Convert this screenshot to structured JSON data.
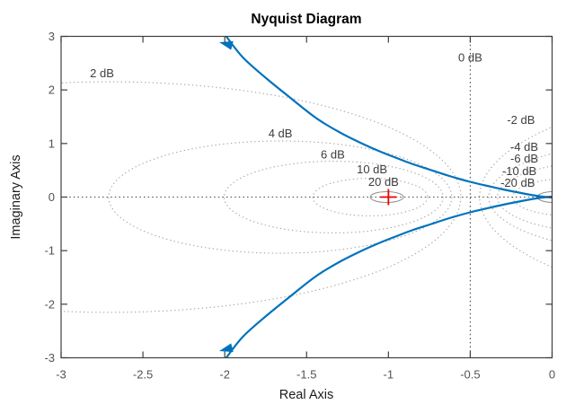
{
  "window": {
    "title": "Nyquist Diagram"
  },
  "chart_data": {
    "type": "line",
    "title": "Nyquist Diagram",
    "xlabel": "Real Axis",
    "ylabel": "Imaginary Axis",
    "xlim": [
      -3,
      0
    ],
    "ylim": [
      -3,
      3
    ],
    "xticks": [
      -3,
      -2.5,
      -2,
      -1.5,
      -1,
      -0.5,
      0
    ],
    "xtick_labels": [
      "-3",
      "-2.5",
      "-2",
      "-1.5",
      "-1",
      "-0.5",
      "0"
    ],
    "yticks": [
      -3,
      -2,
      -1,
      0,
      1,
      2,
      3
    ],
    "ytick_labels": [
      "-3",
      "-2",
      "-1",
      "0",
      "1",
      "2",
      "3"
    ],
    "grid": "nyquist dB grid (dotted M-circles)",
    "legend": "none",
    "zero_lines": {
      "horizontal_y": 0,
      "vertical_x": -0.5
    },
    "critical_point": {
      "x": -1,
      "y": 0,
      "marker": "+",
      "color": "#f00000"
    },
    "series": [
      {
        "name": "nyquist-positive-frequency-branch",
        "color": "#0072bd",
        "points": [
          [
            -1.993,
            3.008
          ],
          [
            -1.889,
            2.606
          ],
          [
            -1.741,
            2.204
          ],
          [
            -1.599,
            1.852
          ],
          [
            -1.468,
            1.533
          ],
          [
            -1.396,
            1.383
          ],
          [
            -1.287,
            1.19
          ],
          [
            -1.177,
            1.022
          ],
          [
            -1.067,
            0.871
          ],
          [
            -0.957,
            0.737
          ],
          [
            -0.848,
            0.612
          ],
          [
            -0.738,
            0.503
          ],
          [
            -0.628,
            0.394
          ],
          [
            -0.502,
            0.285
          ],
          [
            -0.409,
            0.218
          ],
          [
            -0.299,
            0.142
          ],
          [
            -0.189,
            0.075
          ],
          [
            -0.08,
            0.017
          ],
          [
            0.0,
            -0.008
          ]
        ]
      },
      {
        "name": "nyquist-negative-frequency-branch",
        "color": "#0072bd",
        "mirror_of_first": true
      }
    ],
    "arrows": [
      {
        "x": -2.034,
        "y": 2.891,
        "angle_deg": 194.5
      },
      {
        "x": -2.034,
        "y": -2.874,
        "angle_deg": 165.5
      }
    ],
    "db_circles": [
      {
        "label": "2 dB",
        "db": 2,
        "center_x": -2.71,
        "radius": 2.152
      },
      {
        "label": "4 dB",
        "db": 4,
        "center_x": -1.661,
        "radius": 1.048
      },
      {
        "label": "6 dB",
        "db": 6,
        "center_x": -1.335,
        "radius": 0.669
      },
      {
        "label": "10 dB",
        "db": 10,
        "center_x": -1.111,
        "radius": 0.351
      },
      {
        "label": "20 dB",
        "db": 20,
        "center_x": -1.0101,
        "radius": 0.101
      },
      {
        "label": "-2 dB",
        "db": -2,
        "center_x": 1.709,
        "radius": 2.152
      },
      {
        "label": "-4 dB",
        "db": -4,
        "center_x": 0.661,
        "radius": 1.048
      },
      {
        "label": "-6 dB",
        "db": -6,
        "center_x": 0.335,
        "radius": 0.669
      },
      {
        "label": "-10 dB",
        "db": -10,
        "center_x": 0.111,
        "radius": 0.351
      },
      {
        "label": "-20 dB",
        "db": -20,
        "center_x": 0.0101,
        "radius": 0.101
      }
    ],
    "db_labels": [
      {
        "text": "2 dB",
        "x": -2.75,
        "y": 2.31
      },
      {
        "text": "4 dB",
        "x": -1.66,
        "y": 1.19
      },
      {
        "text": "6 dB",
        "x": -1.34,
        "y": 0.8
      },
      {
        "text": "10 dB",
        "x": -1.1,
        "y": 0.52
      },
      {
        "text": "20 dB",
        "x": -1.03,
        "y": 0.285
      },
      {
        "text": "0 dB",
        "x": -0.5,
        "y": 2.61
      },
      {
        "text": "-2 dB",
        "x": -0.19,
        "y": 1.44
      },
      {
        "text": "-4 dB",
        "x": -0.17,
        "y": 0.94
      },
      {
        "text": "-6 dB",
        "x": -0.17,
        "y": 0.72
      },
      {
        "text": "-10 dB",
        "x": -0.2,
        "y": 0.49
      },
      {
        "text": "-20 dB",
        "x": -0.21,
        "y": 0.27
      }
    ],
    "colors": {
      "curve": "#0072bd",
      "grid_dotted": "#a2a2a2",
      "grid_small_solid": "#8f8f8f",
      "zero_line": "#474747",
      "axis_border": "#3f3f3f",
      "tick_label": "#535353",
      "db_label": "#3d3d3d",
      "critical_marker": "#f00000",
      "background": "#ffffff"
    }
  }
}
